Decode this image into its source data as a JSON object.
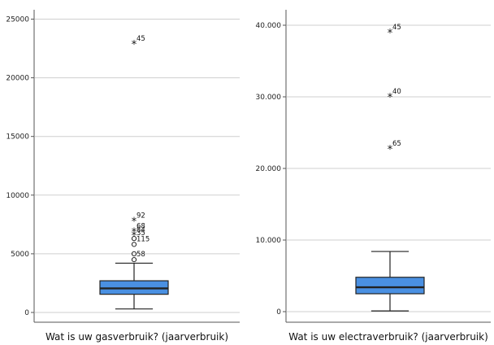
{
  "chart_data": [
    {
      "type": "boxplot",
      "xlabel": "Wat is uw gasverbruik? (jaarverbruik)",
      "ylim": [
        0,
        25000
      ],
      "yticks": [
        0,
        5000,
        10000,
        15000,
        20000,
        25000
      ],
      "ytick_labels": [
        "0",
        "5000",
        "10000",
        "15000",
        "20000",
        "25000"
      ],
      "grid": true,
      "box_color": "#4a90e2",
      "box": {
        "min": 300,
        "q1": 1550,
        "median": 2050,
        "q3": 2700,
        "max": 4200
      },
      "outliers": [
        {
          "label": "45",
          "value": 22900,
          "marker": "*"
        },
        {
          "label": "92",
          "value": 7800,
          "marker": "*"
        },
        {
          "label": "68",
          "value": 6900,
          "marker": "*"
        },
        {
          "label": "84",
          "value": 6600,
          "marker": "*"
        },
        {
          "label": "35",
          "value": 6300,
          "marker": "o"
        },
        {
          "label": "115",
          "value": 5800,
          "marker": "o"
        },
        {
          "label": "",
          "value": 5000,
          "marker": "o"
        },
        {
          "label": "58",
          "value": 4500,
          "marker": "o"
        }
      ]
    },
    {
      "type": "boxplot",
      "xlabel": "Wat is uw electraverbruik? (jaarverbruik)",
      "ylim": [
        0,
        40000
      ],
      "yticks": [
        0,
        10000,
        20000,
        30000,
        40000
      ],
      "ytick_labels": [
        "0",
        "10.000",
        "20.000",
        "30.000",
        "40.000"
      ],
      "grid": true,
      "box_color": "#4a90e2",
      "box": {
        "min": 100,
        "q1": 2500,
        "median": 3400,
        "q3": 4800,
        "max": 8400
      },
      "outliers": [
        {
          "label": "45",
          "value": 39000,
          "marker": "*"
        },
        {
          "label": "40",
          "value": 30000,
          "marker": "*"
        },
        {
          "label": "65",
          "value": 22700,
          "marker": "*"
        }
      ]
    }
  ]
}
